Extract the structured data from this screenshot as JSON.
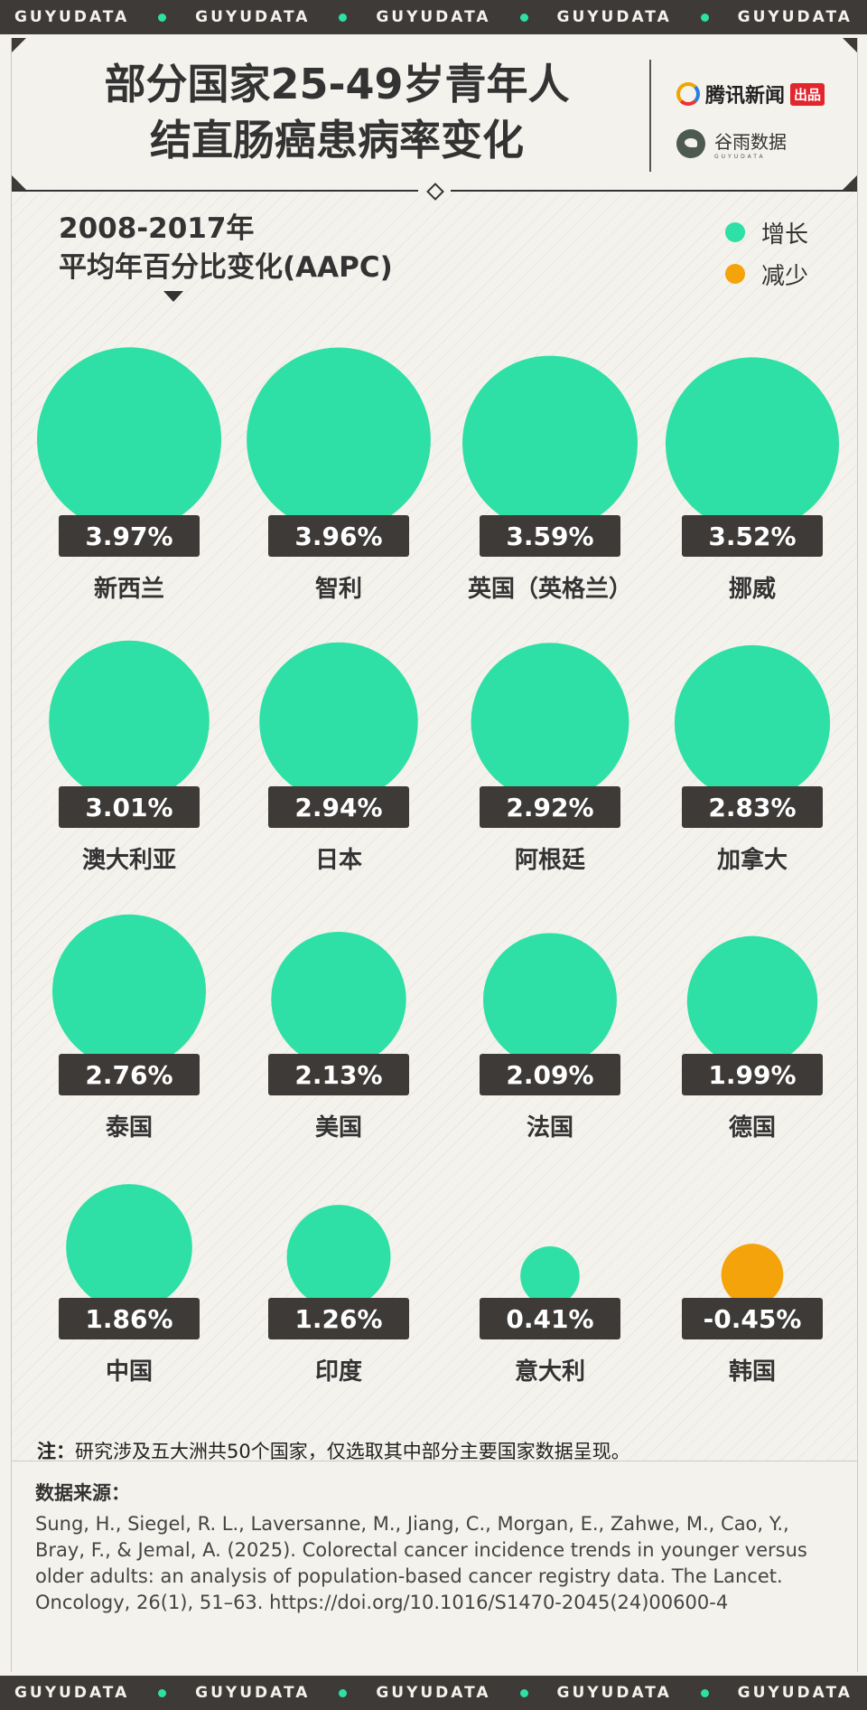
{
  "band_word": "GUYUDATA",
  "header": {
    "title_line1": "部分国家25-49岁青年人",
    "title_line2": "结直肠癌患病率变化",
    "brand1_name": "腾讯新闻",
    "brand1_tag": "出品",
    "brand2_name": "谷雨数据",
    "brand2_sub": "GUYUDATA"
  },
  "aapc_label_line1": "2008-2017年",
  "aapc_label_line2": "平均年百分比变化(AAPC)",
  "legend": [
    {
      "label": "增长",
      "color": "#2ee0a5"
    },
    {
      "label": "减少",
      "color": "#f5a30a"
    }
  ],
  "colors": {
    "increase": "#2ee0a5",
    "decrease": "#f5a30a",
    "label_bg": "#3d3a38"
  },
  "chart_data": {
    "type": "bubble",
    "series": [
      {
        "country": "新西兰",
        "value": 3.97,
        "label": "3.97%"
      },
      {
        "country": "智利",
        "value": 3.96,
        "label": "3.96%"
      },
      {
        "country": "英国（英格兰）",
        "value": 3.59,
        "label": "3.59%"
      },
      {
        "country": "挪威",
        "value": 3.52,
        "label": "3.52%"
      },
      {
        "country": "澳大利亚",
        "value": 3.01,
        "label": "3.01%"
      },
      {
        "country": "日本",
        "value": 2.94,
        "label": "2.94%"
      },
      {
        "country": "阿根廷",
        "value": 2.92,
        "label": "2.92%"
      },
      {
        "country": "加拿大",
        "value": 2.83,
        "label": "2.83%"
      },
      {
        "country": "泰国",
        "value": 2.76,
        "label": "2.76%"
      },
      {
        "country": "美国",
        "value": 2.13,
        "label": "2.13%"
      },
      {
        "country": "法国",
        "value": 2.09,
        "label": "2.09%"
      },
      {
        "country": "德国",
        "value": 1.99,
        "label": "1.99%"
      },
      {
        "country": "中国",
        "value": 1.86,
        "label": "1.86%"
      },
      {
        "country": "印度",
        "value": 1.26,
        "label": "1.26%"
      },
      {
        "country": "意大利",
        "value": 0.41,
        "label": "0.41%"
      },
      {
        "country": "韩国",
        "value": -0.45,
        "label": "-0.45%"
      }
    ]
  },
  "note_prefix": "注：",
  "note_text": "研究涉及五大洲共50个国家，仅选取其中部分主要国家数据呈现。",
  "source_title": "数据来源：",
  "source_text": "Sung, H., Siegel, R. L., Laversanne, M., Jiang, C., Morgan, E., Zahwe, M., Cao, Y., Bray, F., & Jemal, A. (2025). Colorectal cancer incidence trends in younger versus older adults: an analysis of population-based cancer registry data. The Lancet. Oncology, 26(1), 51–63. https://doi.org/10.1016/S1470-2045(24)00600-4"
}
